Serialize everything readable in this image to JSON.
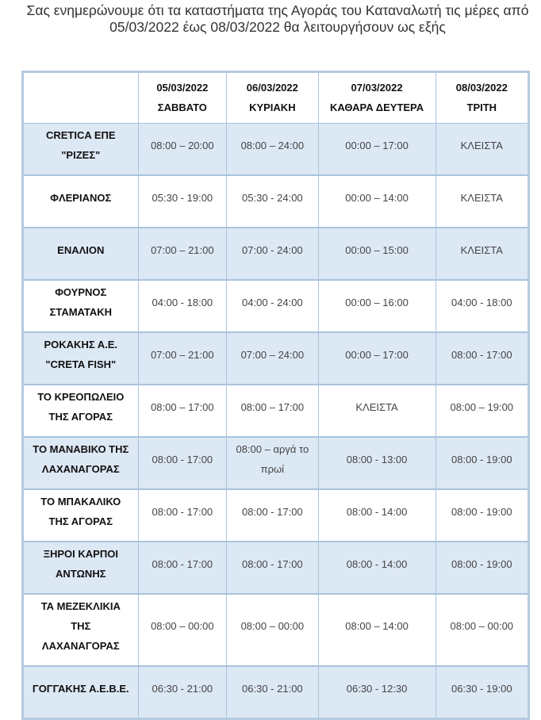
{
  "intro": {
    "line1": "Σας ενημερώνουμε ότι τα καταστήματα της Αγοράς του Καταναλωτή τις μέρες από",
    "line2": "05/03/2022 έως 08/03/2022 θα λειτουργήσουν ως εξής"
  },
  "colors": {
    "row_highlight": "#dde8f5",
    "border": "#a9c3dc"
  },
  "table": {
    "columns": [
      {
        "date": "05/03/2022",
        "day": "ΣΑΒΒΑΤΟ"
      },
      {
        "date": "06/03/2022",
        "day": "ΚΥΡΙΑΚΗ"
      },
      {
        "date": "07/03/2022",
        "day": "ΚΑΘΑΡΑ ΔΕΥΤΕΡΑ"
      },
      {
        "date": "08/03/2022",
        "day": "ΤΡΙΤΗ"
      }
    ],
    "rows": [
      {
        "name": [
          "CRETICA ΕΠΕ",
          "\"ΡΙΖΕΣ\""
        ],
        "hours": [
          "08:00 – 20:00",
          "08:00 – 24:00",
          "00:00 – 17:00",
          "ΚΛΕΙΣΤΑ"
        ]
      },
      {
        "name": [
          "ΦΛΕΡΙΑΝΟΣ"
        ],
        "hours": [
          "05:30 - 19:00",
          "05:30 - 24:00",
          "00:00 – 14:00",
          "ΚΛΕΙΣΤΑ"
        ]
      },
      {
        "name": [
          "ΕΝΑΛΙΟΝ"
        ],
        "hours": [
          "07:00 – 21:00",
          "07:00 - 24:00",
          "00:00 – 15:00",
          "ΚΛΕΙΣΤΑ"
        ]
      },
      {
        "name": [
          "ΦΟΥΡΝΟΣ",
          "ΣΤΑΜΑΤΑΚΗ"
        ],
        "hours": [
          "04:00 - 18:00",
          "04:00 - 24:00",
          "00:00 – 16:00",
          "04:00 - 18:00"
        ]
      },
      {
        "name": [
          "ΡΟΚΑΚΗΣ Α.Ε.",
          "\"CRETA FISH\""
        ],
        "hours": [
          "07:00 – 21:00",
          "07:00 – 24:00",
          "00:00 – 17:00",
          "08:00 - 17:00"
        ]
      },
      {
        "name": [
          "ΤΟ ΚΡΕΟΠΩΛΕΙΟ",
          "ΤΗΣ ΑΓΟΡΑΣ"
        ],
        "hours": [
          "08:00 – 17:00",
          "08:00 – 17:00",
          "ΚΛΕΙΣΤΑ",
          "08:00 – 19:00"
        ]
      },
      {
        "name": [
          "ΤΟ ΜΑΝΑΒΙΚΟ ΤΗΣ",
          "ΛΑΧΑΝΑΓΟΡΑΣ"
        ],
        "hours": [
          "08:00 - 17:00",
          "08:00 – αργά το πρωί",
          "08:00 - 13:00",
          "08:00 - 19:00"
        ]
      },
      {
        "name": [
          "ΤΟ ΜΠΑΚΑΛΙΚΟ",
          "ΤΗΣ ΑΓΟΡΑΣ"
        ],
        "hours": [
          "08:00 - 17:00",
          "08:00 - 17:00",
          "08:00 - 14:00",
          "08:00 - 19:00"
        ]
      },
      {
        "name": [
          "ΞΗΡΟΙ ΚΑΡΠΟΙ",
          "ΑΝΤΩΝΗΣ"
        ],
        "hours": [
          "08:00 - 17:00",
          "08:00 - 17:00",
          "08:00 - 14:00",
          "08:00 - 19:00"
        ]
      },
      {
        "name": [
          "ΤΑ ΜΕΖΕΚΛΙΚΙΑ",
          "ΤΗΣ",
          "ΛΑΧΑΝΑΓΟΡΑΣ"
        ],
        "hours": [
          "08:00 – 00:00",
          "08:00 – 00:00",
          "08:00 – 14:00",
          "08:00 – 00:00"
        ]
      },
      {
        "name": [
          "ΓΟΓΓΑΚΗΣ Α.Ε.Β.Ε."
        ],
        "hours": [
          "06:30 - 21:00",
          "06:30 - 21:00",
          "06:30 - 12:30",
          "06:30 - 19:00"
        ]
      }
    ]
  }
}
